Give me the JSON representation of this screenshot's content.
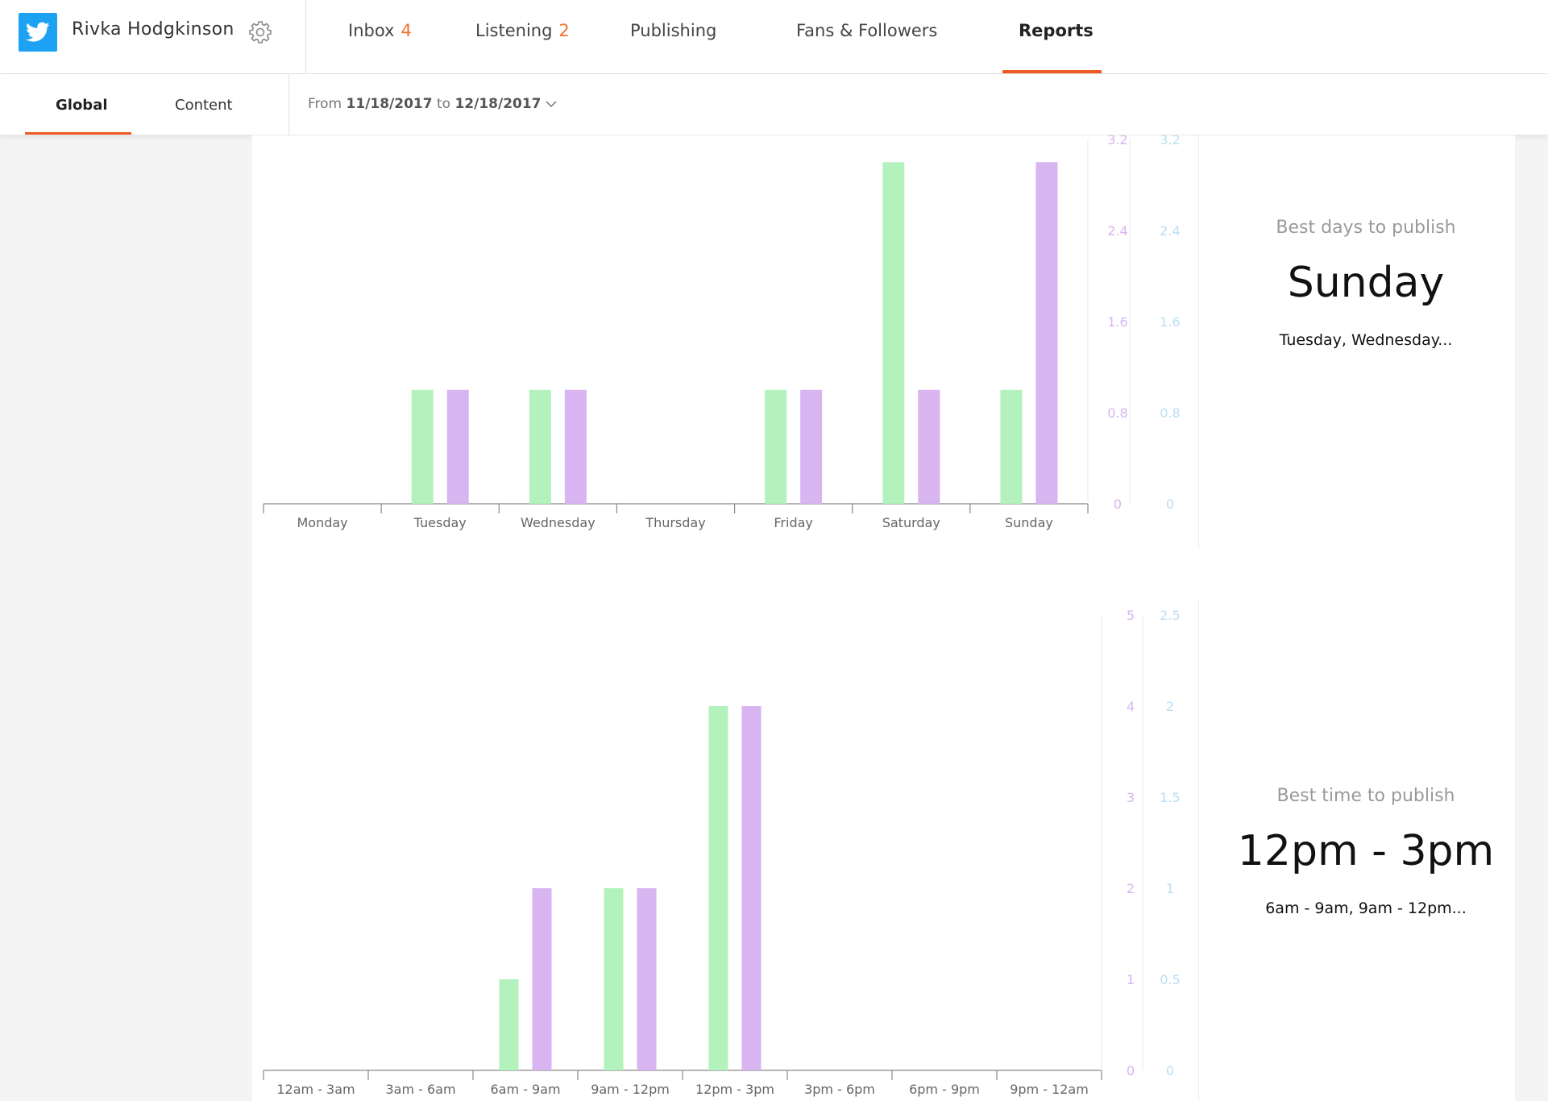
{
  "header": {
    "account_name": "Rivka Hodgkinson",
    "tabs": [
      {
        "label": "Inbox",
        "count": "4"
      },
      {
        "label": "Listening",
        "count": "2"
      },
      {
        "label": "Publishing",
        "count": ""
      },
      {
        "label": "Fans & Followers",
        "count": ""
      },
      {
        "label": "Reports",
        "count": ""
      }
    ],
    "active_tab": "Reports"
  },
  "subnav": {
    "tabs": [
      "Global",
      "Content"
    ],
    "active_tab": "Global",
    "date_range": {
      "prefix": "From",
      "from": "11/18/2017",
      "mid": "to",
      "to": "12/18/2017"
    }
  },
  "colors": {
    "accent": "#f05a22",
    "count": "#f0702d",
    "series_green": "#b4f2bd",
    "series_purple": "#d8b4f0",
    "axis_purple": "#d8b4f0",
    "axis_blue": "#b9dff5"
  },
  "days_summary": {
    "label": "Best days to publish",
    "best": "Sunday",
    "others": "Tuesday, Wednesday..."
  },
  "time_summary": {
    "label": "Best time to publish",
    "best": "12pm - 3pm",
    "others": "6am - 9am, 9am - 12pm..."
  },
  "chart_data": [
    {
      "type": "bar",
      "categories": [
        "Monday",
        "Tuesday",
        "Wednesday",
        "Thursday",
        "Friday",
        "Saturday",
        "Sunday"
      ],
      "series": [
        {
          "color": "#b4f2bd",
          "values": [
            0,
            1,
            1,
            0,
            1,
            3,
            1
          ]
        },
        {
          "color": "#d8b4f0",
          "values": [
            0,
            1,
            1,
            0,
            1,
            1,
            3
          ]
        }
      ],
      "y_axis_left": {
        "ticks": [
          "0",
          "0.8",
          "1.6",
          "2.4",
          "3.2"
        ],
        "ylim": [
          0,
          3.2
        ]
      },
      "y_axis_right": {
        "ticks": [
          "0",
          "0.8",
          "1.6",
          "2.4",
          "3.2"
        ],
        "ylim": [
          0,
          3.2
        ]
      },
      "grid": false
    },
    {
      "type": "bar",
      "categories": [
        "12am - 3am",
        "3am - 6am",
        "6am - 9am",
        "9am - 12pm",
        "12pm - 3pm",
        "3pm - 6pm",
        "6pm - 9pm",
        "9pm - 12am"
      ],
      "series": [
        {
          "color": "#b4f2bd",
          "values": [
            0,
            0,
            0.5,
            1,
            2,
            0,
            0,
            0
          ],
          "axis": "right"
        },
        {
          "color": "#d8b4f0",
          "values": [
            0,
            0,
            2,
            2,
            4,
            0,
            0,
            0
          ],
          "axis": "left"
        }
      ],
      "y_axis_left": {
        "ticks": [
          "0",
          "1",
          "2",
          "3",
          "4",
          "5"
        ],
        "ylim": [
          0,
          5
        ]
      },
      "y_axis_right": {
        "ticks": [
          "0",
          "0.5",
          "1",
          "1.5",
          "2",
          "2.5"
        ],
        "ylim": [
          0,
          2.5
        ]
      },
      "grid": false
    }
  ]
}
